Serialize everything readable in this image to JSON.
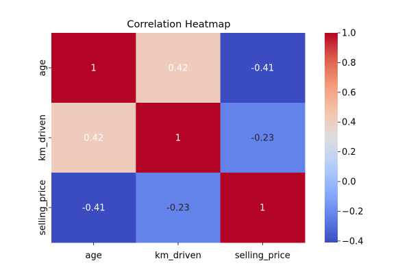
{
  "chart_data": {
    "type": "heatmap",
    "title": "Correlation Heatmap",
    "x_labels": [
      "age",
      "km_driven",
      "selling_price"
    ],
    "y_labels": [
      "age",
      "km_driven",
      "selling_price"
    ],
    "values": [
      [
        1,
        0.42,
        -0.41
      ],
      [
        0.42,
        1,
        -0.23
      ],
      [
        -0.41,
        -0.23,
        1
      ]
    ],
    "cell_labels": [
      [
        "1",
        "0.42",
        "-0.41"
      ],
      [
        "0.42",
        "1",
        "-0.23"
      ],
      [
        "-0.41",
        "-0.23",
        "1"
      ]
    ],
    "colormap": "coolwarm",
    "color_range": [
      -0.41,
      1.0
    ],
    "colorbar": {
      "ticks": [
        1.0,
        0.8,
        0.6,
        0.4,
        0.2,
        0.0,
        -0.2,
        -0.4
      ],
      "tick_labels": [
        "1.0",
        "0.8",
        "0.6",
        "0.4",
        "0.2",
        "0.0",
        "−0.2",
        "−0.4"
      ]
    }
  }
}
